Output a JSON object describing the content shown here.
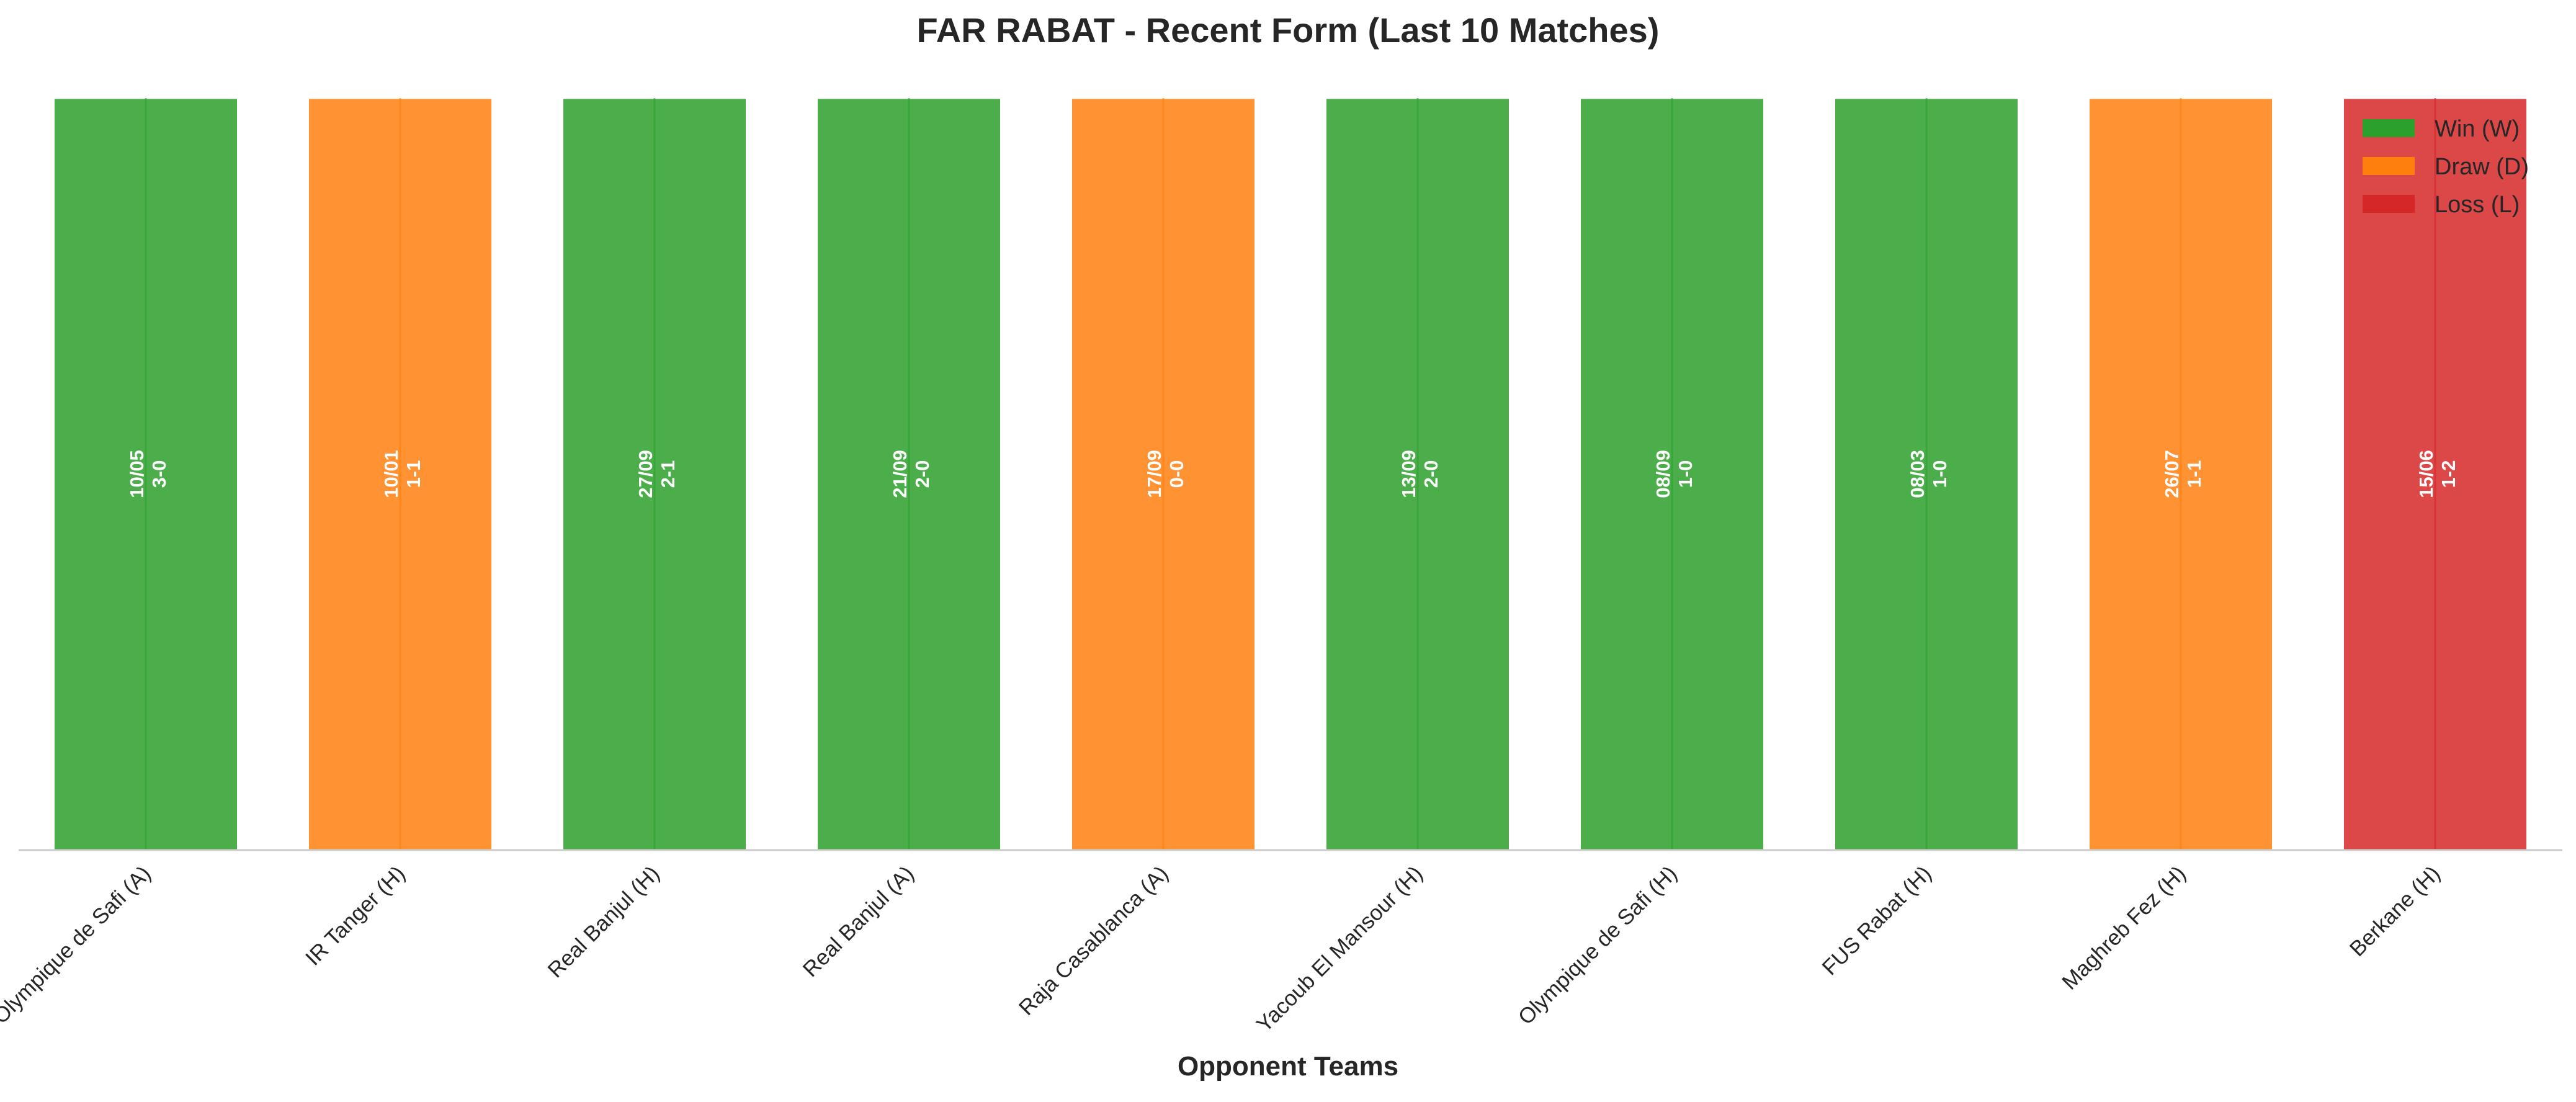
{
  "chart_data": {
    "type": "bar",
    "title": "FAR RABAT - Recent Form (Last 10 Matches)",
    "xlabel": "Opponent Teams",
    "ylabel": "",
    "ylim": [
      0,
      1
    ],
    "grid": false,
    "legend_position": "top-right",
    "legend": [
      {
        "key": "W",
        "label": "Win (W)",
        "color": "#2ca02c"
      },
      {
        "key": "D",
        "label": "Draw (D)",
        "color": "#ff7f0e"
      },
      {
        "key": "L",
        "label": "Loss (L)",
        "color": "#d62728"
      }
    ],
    "categories": [
      "Olympique de Safi (A)",
      "IR Tanger (H)",
      "Real Banjul (H)",
      "Real Banjul (A)",
      "Raja Casablanca (A)",
      "Yacoub El Mansour (H)",
      "Olympique de Safi (H)",
      "FUS Rabat (H)",
      "Maghreb Fez (H)",
      "Berkane (H)"
    ],
    "values": [
      1,
      1,
      1,
      1,
      1,
      1,
      1,
      1,
      1,
      1
    ],
    "results": [
      "W",
      "D",
      "W",
      "W",
      "D",
      "W",
      "W",
      "W",
      "D",
      "L"
    ],
    "dates": [
      "10/05",
      "10/01",
      "27/09",
      "21/09",
      "17/09",
      "13/09",
      "08/09",
      "08/03",
      "26/07",
      "15/06"
    ],
    "scores": [
      "3-0",
      "1-1",
      "2-1",
      "2-0",
      "0-0",
      "2-0",
      "1-0",
      "1-0",
      "1-1",
      "1-2"
    ]
  }
}
